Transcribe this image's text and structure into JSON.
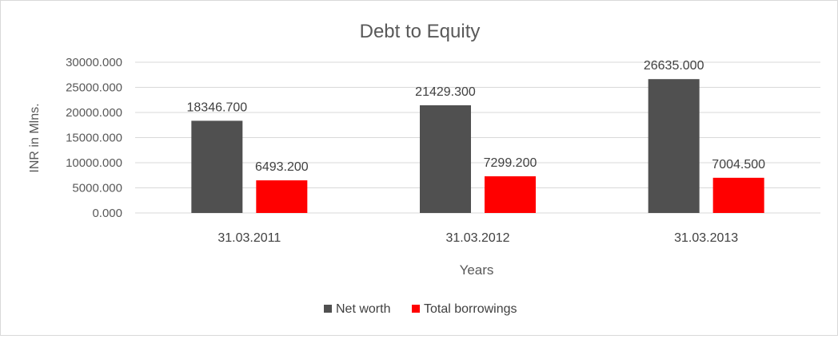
{
  "chart_data": {
    "type": "bar",
    "title": "Debt to Equity",
    "xlabel": "Years",
    "ylabel": "INR in Mlns.",
    "categories": [
      "31.03.2011",
      "31.03.2012",
      "31.03.2013"
    ],
    "series": [
      {
        "name": "Net worth",
        "color": "#505050",
        "values": [
          18346.7,
          21429.3,
          26635.0
        ],
        "labels": [
          "18346.700",
          "21429.300",
          "26635.000"
        ]
      },
      {
        "name": "Total borrowings",
        "color": "#ff0000",
        "values": [
          6493.2,
          7299.2,
          7004.5
        ],
        "labels": [
          "6493.200",
          "7299.200",
          "7004.500"
        ]
      }
    ],
    "yticks": [
      0,
      5000,
      10000,
      15000,
      20000,
      25000,
      30000
    ],
    "ytick_labels": [
      "0.000",
      "5000.000",
      "10000.000",
      "15000.000",
      "20000.000",
      "25000.000",
      "30000.000"
    ],
    "ylim": [
      0,
      30000
    ],
    "grid": true,
    "legend_position": "bottom"
  }
}
